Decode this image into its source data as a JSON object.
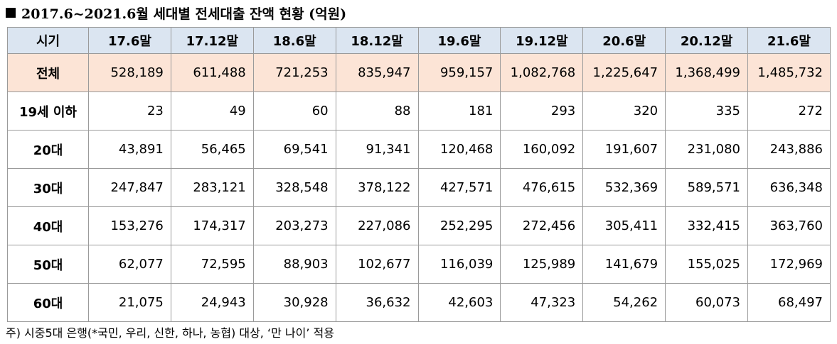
{
  "title": "2017.6~2021.6월 세대별 전세대출 잔액 현황 (억원)",
  "table": {
    "header_label": "시기",
    "columns": [
      "17.6말",
      "17.12말",
      "18.6말",
      "18.12말",
      "19.6말",
      "19.12말",
      "20.6말",
      "20.12말",
      "21.6말"
    ],
    "rows": [
      {
        "label": "전체",
        "values": [
          "528,189",
          "611,488",
          "721,253",
          "835,947",
          "959,157",
          "1,082,768",
          "1,225,647",
          "1,368,499",
          "1,485,732"
        ]
      },
      {
        "label": "19세 이하",
        "values": [
          "23",
          "49",
          "60",
          "88",
          "181",
          "293",
          "320",
          "335",
          "272"
        ]
      },
      {
        "label": "20대",
        "values": [
          "43,891",
          "56,465",
          "69,541",
          "91,341",
          "120,468",
          "160,092",
          "191,607",
          "231,080",
          "243,886"
        ]
      },
      {
        "label": "30대",
        "values": [
          "247,847",
          "283,121",
          "328,548",
          "378,122",
          "427,571",
          "476,615",
          "532,369",
          "589,571",
          "636,348"
        ]
      },
      {
        "label": "40대",
        "values": [
          "153,276",
          "174,317",
          "203,273",
          "227,086",
          "252,295",
          "272,456",
          "305,411",
          "332,415",
          "363,760"
        ]
      },
      {
        "label": "50대",
        "values": [
          "62,077",
          "72,595",
          "88,903",
          "102,677",
          "116,039",
          "125,989",
          "141,679",
          "155,025",
          "172,969"
        ]
      },
      {
        "label": "60대",
        "values": [
          "21,075",
          "24,943",
          "30,928",
          "36,632",
          "42,603",
          "47,323",
          "54,262",
          "60,073",
          "68,497"
        ]
      }
    ]
  },
  "note": "주) 시중5대 은행(*국민, 우리, 신한, 하나, 농협) 대상, ‘만 나이’ 적용",
  "colors": {
    "header_bg": "#dbe5f1",
    "total_row_bg": "#fce4d6",
    "border": "#9a9a9a"
  }
}
